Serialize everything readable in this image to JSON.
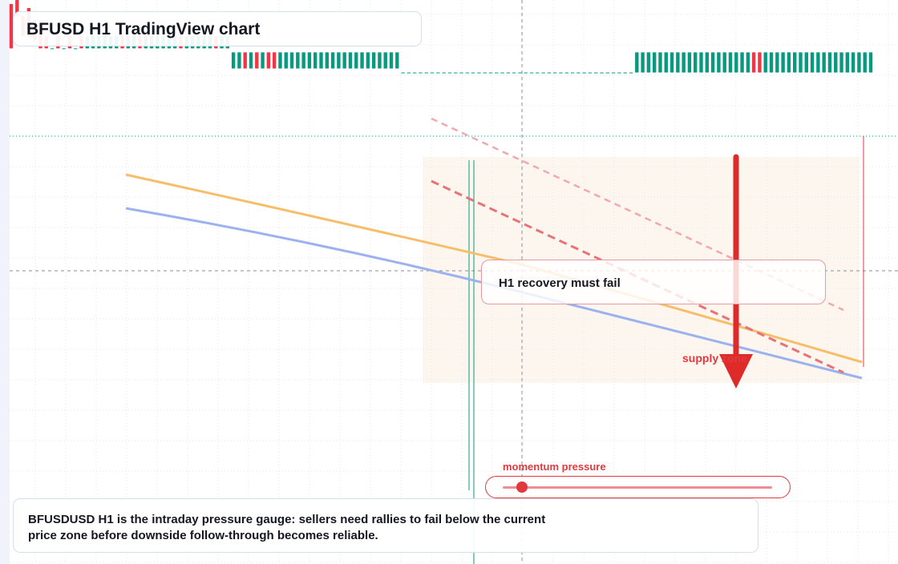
{
  "title": "BFUSD H1 TradingView chart",
  "annotations": {
    "recovery_note": "H1 recovery must fail",
    "zone_label": "supply zone",
    "gauge_label": "momentum pressure",
    "gauge_level": 0.07
  },
  "caption": "BFUSDUSD H1 is the intraday pressure gauge: sellers need rallies to fail below the current price zone before downside follow-through becomes reliable.",
  "colors": {
    "up": "#089981",
    "down": "#f23645",
    "ma_fast": "#f7be6a",
    "ma_slow": "#9bb2ef",
    "arrow": "#df2a2a",
    "zone": "#fdf6ef"
  },
  "chart_data": {
    "type": "candlestick",
    "ylim": [
      0.9993,
      1.0007
    ],
    "current_price": 1.00002,
    "crosshair_price": 0.99968,
    "candles": [
      [
        1.00069,
        1.00069,
        1.00058,
        1.00058
      ],
      [
        1.0007,
        1.0007,
        1.00066,
        1.00066
      ],
      [
        1.00066,
        1.00066,
        1.00061,
        1.00061
      ],
      [
        1.00068,
        1.00068,
        1.00061,
        1.00061
      ],
      [
        1.00065,
        1.00065,
        1.0006,
        1.0006
      ],
      [
        1.00065,
        1.00065,
        1.00058,
        1.00058
      ],
      [
        1.00061,
        1.00061,
        1.00058,
        1.00058
      ],
      [
        1.00058,
        1.00058,
        1.00058,
        1.00058
      ],
      [
        1.00061,
        1.00061,
        1.00058,
        1.00058
      ],
      [
        1.00058,
        1.00058,
        1.00058,
        1.00058
      ],
      [
        1.00061,
        1.00061,
        1.00058,
        1.00058
      ],
      [
        1.00058,
        1.00058,
        1.00058,
        1.00058
      ],
      [
        1.00061,
        1.00061,
        1.00058,
        1.00058
      ],
      [
        1.00058,
        1.00061,
        1.00058,
        1.00061
      ],
      [
        1.00058,
        1.00061,
        1.00058,
        1.00061
      ],
      [
        1.00058,
        1.00061,
        1.00058,
        1.00061
      ],
      [
        1.00058,
        1.00061,
        1.00058,
        1.00061
      ],
      [
        1.00058,
        1.00061,
        1.00058,
        1.00061
      ],
      [
        1.00058,
        1.00061,
        1.00058,
        1.00061
      ],
      [
        1.00061,
        1.00061,
        1.00058,
        1.00058
      ],
      [
        1.00058,
        1.00061,
        1.00058,
        1.00061
      ],
      [
        1.00058,
        1.00061,
        1.00058,
        1.00061
      ],
      [
        1.00061,
        1.00061,
        1.00058,
        1.00058
      ],
      [
        1.00058,
        1.00061,
        1.00058,
        1.00061
      ],
      [
        1.00058,
        1.00061,
        1.00058,
        1.00061
      ],
      [
        1.00058,
        1.00061,
        1.00058,
        1.00061
      ],
      [
        1.00058,
        1.00061,
        1.00058,
        1.00061
      ],
      [
        1.00058,
        1.00061,
        1.00058,
        1.00061
      ],
      [
        1.00058,
        1.00061,
        1.00058,
        1.00061
      ],
      [
        1.00061,
        1.00061,
        1.00058,
        1.00058
      ],
      [
        1.00058,
        1.00061,
        1.00058,
        1.00061
      ],
      [
        1.00058,
        1.00061,
        1.00058,
        1.00061
      ],
      [
        1.00058,
        1.00061,
        1.00058,
        1.00061
      ],
      [
        1.00058,
        1.00061,
        1.00058,
        1.00061
      ],
      [
        1.00058,
        1.00061,
        1.00058,
        1.00061
      ],
      [
        1.00061,
        1.00061,
        1.00058,
        1.00058
      ],
      [
        1.00058,
        1.00061,
        1.00058,
        1.00061
      ],
      [
        1.00058,
        1.00061,
        1.00058,
        1.00061
      ],
      [
        1.00053,
        1.00057,
        1.00053,
        1.00057
      ],
      [
        1.00053,
        1.00057,
        1.00053,
        1.00057
      ],
      [
        1.00057,
        1.00057,
        1.00053,
        1.00053
      ],
      [
        1.00053,
        1.00057,
        1.00053,
        1.00057
      ],
      [
        1.00057,
        1.00057,
        1.00053,
        1.00053
      ],
      [
        1.00053,
        1.00057,
        1.00053,
        1.00057
      ],
      [
        1.00057,
        1.00057,
        1.00053,
        1.00053
      ],
      [
        1.00057,
        1.00057,
        1.00053,
        1.00053
      ],
      [
        1.00053,
        1.00057,
        1.00053,
        1.00057
      ],
      [
        1.00053,
        1.00057,
        1.00053,
        1.00057
      ],
      [
        1.00053,
        1.00057,
        1.00053,
        1.00057
      ],
      [
        1.00053,
        1.00057,
        1.00053,
        1.00057
      ],
      [
        1.00053,
        1.00057,
        1.00053,
        1.00057
      ],
      [
        1.00053,
        1.00057,
        1.00053,
        1.00057
      ],
      [
        1.00053,
        1.00057,
        1.00053,
        1.00057
      ],
      [
        1.00053,
        1.00057,
        1.00053,
        1.00057
      ],
      [
        1.00053,
        1.00057,
        1.00053,
        1.00057
      ],
      [
        1.00053,
        1.00057,
        1.00053,
        1.00057
      ],
      [
        1.00053,
        1.00057,
        1.00053,
        1.00057
      ],
      [
        1.00053,
        1.00057,
        1.00053,
        1.00057
      ],
      [
        1.00053,
        1.00057,
        1.00053,
        1.00057
      ],
      [
        1.00053,
        1.00057,
        1.00053,
        1.00057
      ],
      [
        1.00053,
        1.00057,
        1.00053,
        1.00057
      ],
      [
        1.00053,
        1.00057,
        1.00053,
        1.00057
      ],
      [
        1.00053,
        1.00057,
        1.00053,
        1.00057
      ],
      [
        1.00053,
        1.00057,
        1.00053,
        1.00057
      ],
      [
        1.00053,
        1.00057,
        1.00053,
        1.00057
      ],
      [
        1.00053,
        1.00057,
        1.00053,
        1.00057
      ],
      [
        1.00053,
        1.00057,
        1.00053,
        1.00057
      ],
      [
        1.00052,
        1.00052,
        1.00052,
        1.00052
      ],
      [
        1.00052,
        1.00052,
        1.00052,
        1.00052
      ],
      [
        1.00052,
        1.00052,
        1.00052,
        1.00052
      ],
      [
        1.00052,
        1.00052,
        1.00052,
        1.00052
      ],
      [
        1.00052,
        1.00052,
        1.00052,
        1.00052
      ],
      [
        1.00052,
        1.00052,
        1.00052,
        1.00052
      ],
      [
        1.00052,
        1.00052,
        1.00052,
        1.00052
      ],
      [
        1.00052,
        1.00052,
        1.00052,
        1.00052
      ],
      [
        1.00052,
        1.00052,
        1.00052,
        1.00052
      ],
      [
        1.00052,
        1.00052,
        1.00052,
        1.00052
      ],
      [
        1.00052,
        1.00052,
        1.00052,
        1.00052
      ],
      [
        1.00052,
        1.00052,
        1.00052,
        1.00052
      ],
      [
        1.00052,
        1.00052,
        1.00052,
        1.00052
      ],
      [
        1.00052,
        1.00052,
        1.00052,
        1.00052
      ],
      [
        1.00052,
        1.00052,
        1.00052,
        1.00052
      ],
      [
        1.00052,
        1.00052,
        1.00052,
        1.00052
      ],
      [
        1.00052,
        1.00052,
        1.00052,
        1.00052
      ],
      [
        1.00052,
        1.00052,
        1.00052,
        1.00052
      ],
      [
        1.00052,
        1.00052,
        1.00052,
        1.00052
      ],
      [
        1.00052,
        1.00052,
        1.00052,
        1.00052
      ],
      [
        1.00052,
        1.00052,
        1.00052,
        1.00052
      ],
      [
        1.00052,
        1.00052,
        1.00052,
        1.00052
      ],
      [
        1.00052,
        1.00052,
        1.00052,
        1.00052
      ],
      [
        1.00052,
        1.00052,
        1.00052,
        1.00052
      ],
      [
        1.00052,
        1.00052,
        1.00052,
        1.00052
      ],
      [
        1.00052,
        1.00052,
        1.00052,
        1.00052
      ],
      [
        1.00052,
        1.00052,
        1.00052,
        1.00052
      ],
      [
        1.00052,
        1.00052,
        1.00052,
        1.00052
      ],
      [
        1.00052,
        1.00052,
        1.00052,
        1.00052
      ],
      [
        1.00052,
        1.00052,
        1.00052,
        1.00052
      ],
      [
        1.00052,
        1.00052,
        1.00052,
        1.00052
      ],
      [
        1.00052,
        1.00052,
        1.00052,
        1.00052
      ],
      [
        1.00052,
        1.00052,
        1.00052,
        1.00052
      ],
      [
        1.00052,
        1.00052,
        1.00052,
        1.00052
      ],
      [
        1.00052,
        1.00052,
        1.00052,
        1.00052
      ],
      [
        1.00052,
        1.00052,
        1.00052,
        1.00052
      ],
      [
        1.00052,
        1.00052,
        1.00052,
        1.00052
      ],
      [
        1.00052,
        1.00052,
        1.00052,
        1.00052
      ],
      [
        1.00052,
        1.00052,
        1.00052,
        1.00052
      ],
      [
        1.00052,
        1.00052,
        1.00052,
        1.00052
      ],
      [
        1.00052,
        1.00057,
        1.00052,
        1.00057
      ],
      [
        1.00052,
        1.00057,
        1.00052,
        1.00057
      ],
      [
        1.00052,
        1.00057,
        1.00052,
        1.00057
      ],
      [
        1.00052,
        1.00057,
        1.00052,
        1.00057
      ],
      [
        1.00052,
        1.00057,
        1.00052,
        1.00057
      ],
      [
        1.00052,
        1.00057,
        1.00052,
        1.00057
      ],
      [
        1.00052,
        1.00057,
        1.00052,
        1.00057
      ],
      [
        1.00052,
        1.00057,
        1.00052,
        1.00057
      ],
      [
        1.00052,
        1.00057,
        1.00052,
        1.00057
      ],
      [
        1.00052,
        1.00057,
        1.00052,
        1.00057
      ],
      [
        1.00052,
        1.00057,
        1.00052,
        1.00057
      ],
      [
        1.00052,
        1.00057,
        1.00052,
        1.00057
      ],
      [
        1.00052,
        1.00057,
        1.00052,
        1.00057
      ],
      [
        1.00052,
        1.00057,
        1.00052,
        1.00057
      ],
      [
        1.00052,
        1.00057,
        1.00052,
        1.00057
      ],
      [
        1.00052,
        1.00057,
        1.00052,
        1.00057
      ],
      [
        1.00052,
        1.00057,
        1.00052,
        1.00057
      ],
      [
        1.00052,
        1.00057,
        1.00052,
        1.00057
      ],
      [
        1.00052,
        1.00057,
        1.00052,
        1.00057
      ],
      [
        1.00052,
        1.00057,
        1.00052,
        1.00057
      ],
      [
        1.00057,
        1.00057,
        1.00052,
        1.00052
      ],
      [
        1.00057,
        1.00057,
        1.00052,
        1.00052
      ],
      [
        1.00052,
        1.00057,
        1.00052,
        1.00057
      ],
      [
        1.00052,
        1.00057,
        1.00052,
        1.00057
      ],
      [
        1.00052,
        1.00057,
        1.00052,
        1.00057
      ],
      [
        1.00052,
        1.00057,
        1.00052,
        1.00057
      ],
      [
        1.00052,
        1.00057,
        1.00052,
        1.00057
      ],
      [
        1.00052,
        1.00057,
        1.00052,
        1.00057
      ],
      [
        1.00052,
        1.00057,
        1.00052,
        1.00057
      ],
      [
        1.00052,
        1.00057,
        1.00052,
        1.00057
      ],
      [
        1.00052,
        1.00057,
        1.00052,
        1.00057
      ],
      [
        1.00052,
        1.00057,
        1.00052,
        1.00057
      ],
      [
        1.00052,
        1.00057,
        1.00052,
        1.00057
      ],
      [
        1.00052,
        1.00057,
        1.00052,
        1.00057
      ],
      [
        1.00052,
        1.00057,
        1.00052,
        1.00057
      ],
      [
        1.00052,
        1.00057,
        1.00052,
        1.00057
      ],
      [
        1.00052,
        1.00057,
        1.00052,
        1.00057
      ],
      [
        1.00052,
        1.00057,
        1.00052,
        1.00057
      ],
      [
        1.00052,
        1.00057,
        1.00052,
        1.00057
      ],
      [
        1.00052,
        1.00057,
        1.00052,
        1.00057
      ],
      [
        1.00052,
        1.00057,
        1.00052,
        1.00057
      ]
    ]
  }
}
